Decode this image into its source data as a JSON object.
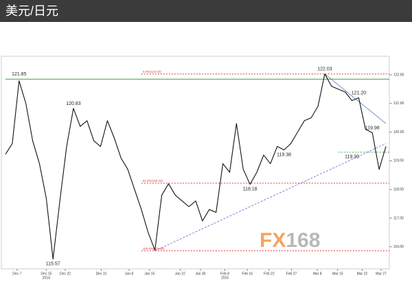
{
  "header": {
    "title": "美元/日元"
  },
  "chart_data": {
    "type": "line",
    "series": [
      {
        "name": "USD/JPY",
        "color": "#111111",
        "values": [
          119.23,
          119.6,
          121.79,
          121.0,
          119.7,
          118.9,
          117.7,
          115.57,
          117.6,
          119.5,
          120.83,
          120.2,
          120.4,
          119.7,
          119.5,
          120.4,
          119.8,
          119.1,
          118.7,
          118.0,
          117.3,
          116.5,
          115.88,
          117.8,
          118.2,
          117.8,
          117.6,
          117.4,
          117.6,
          116.9,
          117.3,
          117.2,
          118.9,
          118.6,
          120.3,
          118.7,
          118.18,
          118.6,
          119.2,
          118.9,
          119.5,
          119.38,
          119.6,
          120.0,
          120.4,
          120.5,
          120.9,
          122.03,
          121.6,
          121.5,
          121.4,
          121.1,
          121.2,
          120.1,
          119.98,
          118.7,
          119.5
        ]
      }
    ],
    "xlim": [
      0,
      56
    ],
    "xticks": [
      {
        "value": 1.7,
        "label": "Dec 7"
      },
      {
        "value": 6,
        "label": "Dec 15"
      },
      {
        "value": 8.8,
        "label": "Dec 22"
      },
      {
        "value": 14.1,
        "label": "Dec 31"
      },
      {
        "value": 18.2,
        "label": "Jan 8"
      },
      {
        "value": 21.2,
        "label": "Jan 15"
      },
      {
        "value": 25.7,
        "label": "Jan 22"
      },
      {
        "value": 28.7,
        "label": "Jan 30"
      },
      {
        "value": 32.3,
        "label": "Feb 8"
      },
      {
        "value": 35.6,
        "label": "Feb 16"
      },
      {
        "value": 38.8,
        "label": "Feb 22"
      },
      {
        "value": 42.1,
        "label": "Feb 27"
      },
      {
        "value": 45.9,
        "label": "Mar 8"
      },
      {
        "value": 48.9,
        "label": "Mar 15"
      },
      {
        "value": 52.5,
        "label": "Mar 22"
      },
      {
        "value": 55.3,
        "label": "Mar 27"
      }
    ],
    "year_labels": [
      {
        "value": 6,
        "label": "2014"
      },
      {
        "value": 32.3,
        "label": "2015"
      }
    ],
    "ylim": [
      115.3,
      122.6
    ],
    "yticks": [
      {
        "value": 116,
        "label": "116.00"
      },
      {
        "value": 117,
        "label": "117.00"
      },
      {
        "value": 118,
        "label": "118.00"
      },
      {
        "value": 119,
        "label": "119.00"
      },
      {
        "value": 120,
        "label": "120.00"
      },
      {
        "value": 121,
        "label": "121.00"
      },
      {
        "value": 122,
        "label": "122.00"
      }
    ],
    "annotations": [
      {
        "label": "121.85",
        "x": 2,
        "value": 121.85,
        "position": "above"
      },
      {
        "label": "120.83",
        "x": 10,
        "value": 120.83,
        "position": "above"
      },
      {
        "label": "115.57",
        "x": 7,
        "value": 115.57,
        "position": "below"
      },
      {
        "label": "118.18",
        "x": 36,
        "value": 118.18,
        "position": "below"
      },
      {
        "label": "119.38",
        "x": 41,
        "value": 119.38,
        "position": "below"
      },
      {
        "label": "122.03",
        "x": 47,
        "value": 122.03,
        "position": "above"
      },
      {
        "label": "121.20",
        "x": 52,
        "value": 121.2,
        "position": "above"
      },
      {
        "label": "119.98",
        "x": 54,
        "value": 119.98,
        "position": "above"
      },
      {
        "label": "119.30",
        "x": 51,
        "value": 119.3,
        "position": "below"
      }
    ],
    "levels": [
      {
        "value": 122.03,
        "label": "0.0%(122.03)",
        "color": "#e0393e",
        "dash": true,
        "start": 20
      },
      {
        "value": 121.85,
        "color": "#3aa64a",
        "dash": false,
        "start": 0
      },
      {
        "value": 118.22,
        "label": "61.8%(118.22)",
        "color": "#e0393e",
        "dash": true,
        "start": 20
      },
      {
        "value": 115.86,
        "label": "100.0%(115.86)",
        "color": "#e0393e",
        "dash": true,
        "start": 20
      },
      {
        "value": 119.3,
        "color": "#3aa64a",
        "dash": true,
        "start": 49
      }
    ],
    "trendlines": [
      {
        "from": [
          22,
          115.86
        ],
        "to": [
          56,
          119.6
        ],
        "color": "#6a5acd",
        "dash": true
      },
      {
        "from": [
          47,
          122.03
        ],
        "to": [
          56,
          120.3
        ],
        "color": "#5577bb",
        "dash": false
      }
    ],
    "watermark": [
      "FX",
      "168"
    ]
  }
}
